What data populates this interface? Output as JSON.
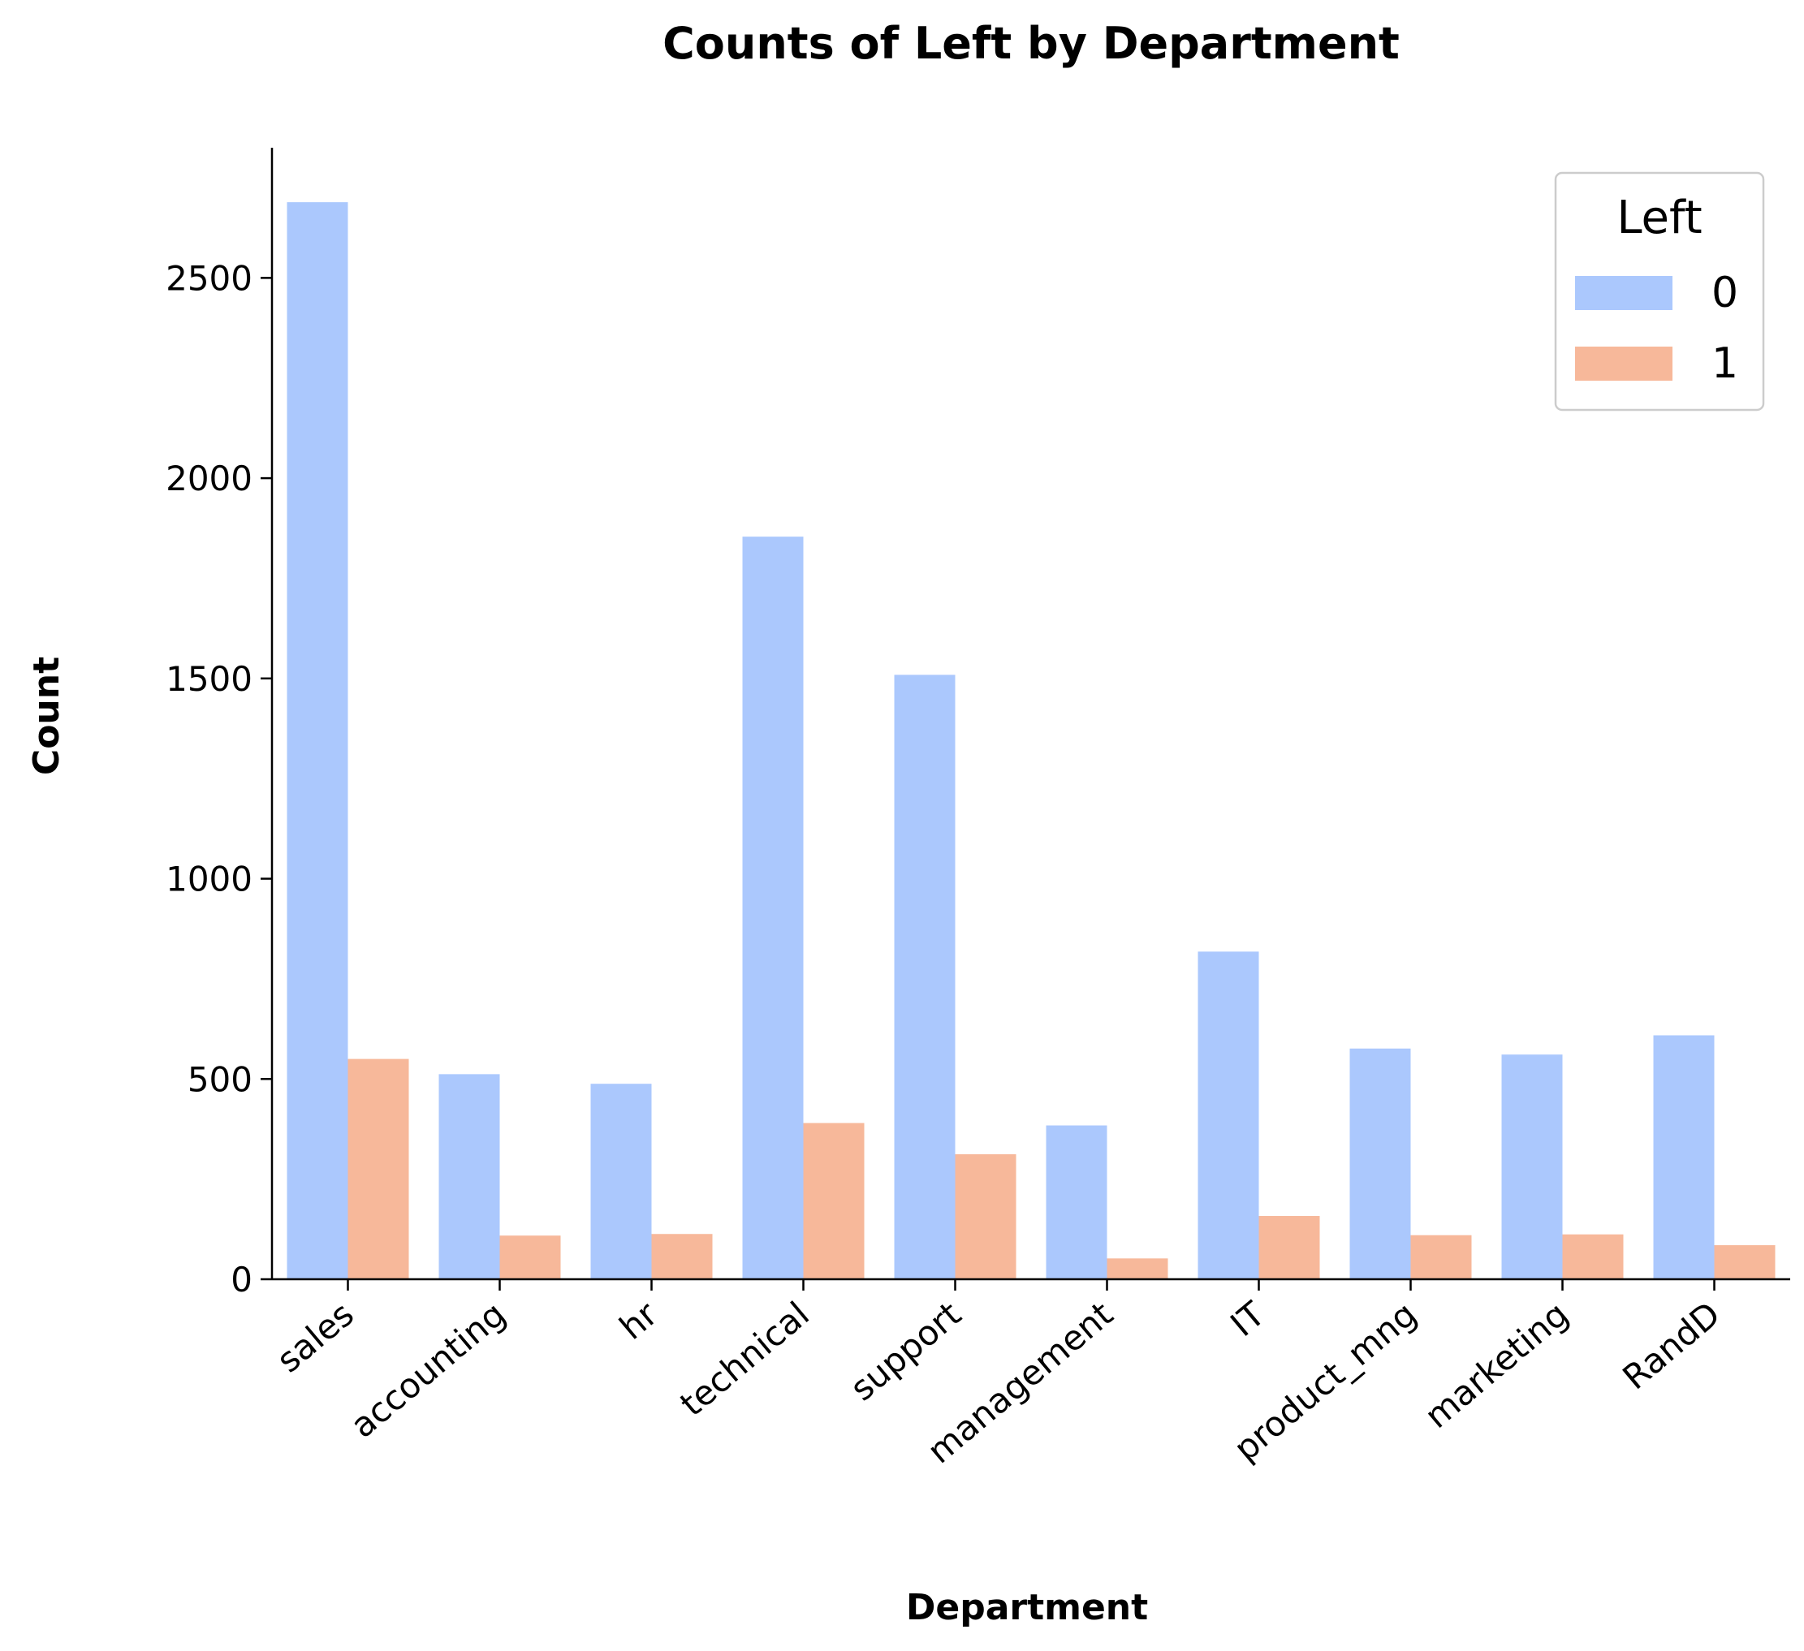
{
  "chart_data": {
    "type": "bar",
    "title": "Counts of Left by Department",
    "xlabel": "Department",
    "ylabel": "Count",
    "categories": [
      "sales",
      "accounting",
      "hr",
      "technical",
      "support",
      "management",
      "IT",
      "product_mng",
      "marketing",
      "RandD"
    ],
    "series": [
      {
        "name": "0",
        "color": "#abc8fd",
        "values": [
          2689,
          512,
          488,
          1854,
          1509,
          384,
          818,
          576,
          561,
          609
        ]
      },
      {
        "name": "1",
        "color": "#f7b89a",
        "values": [
          550,
          109,
          113,
          390,
          312,
          52,
          158,
          110,
          112,
          85
        ]
      }
    ],
    "ylim": [
      0,
      2825
    ],
    "yticks": [
      0,
      500,
      1000,
      1500,
      2000,
      2500
    ],
    "legend": {
      "title": "Left",
      "placement": "top-right"
    },
    "grid": false
  }
}
